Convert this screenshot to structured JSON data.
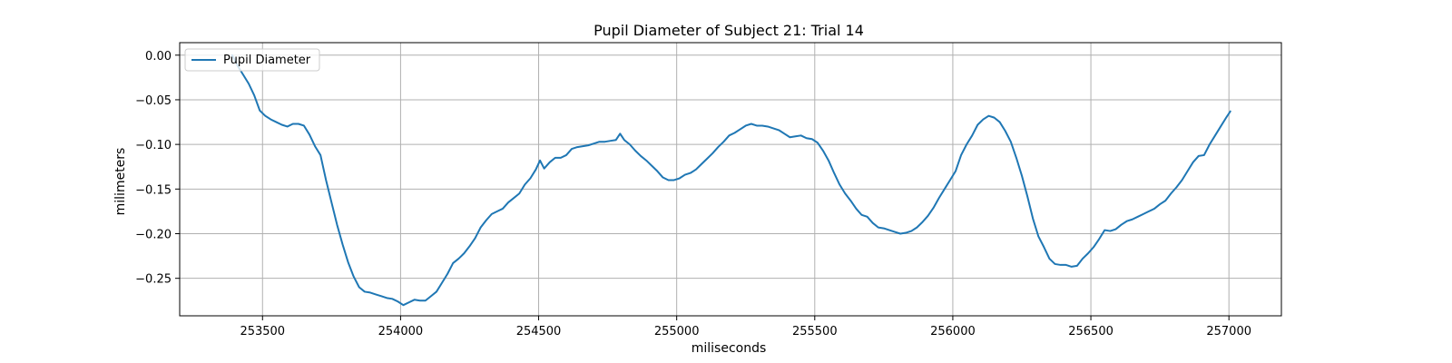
{
  "chart_data": {
    "type": "line",
    "title": "Pupil Diameter of Subject 21: Trial 14",
    "xlabel": "miliseconds",
    "ylabel": "milimeters",
    "xlim": [
      253200,
      257190
    ],
    "ylim": [
      -0.292,
      0.014
    ],
    "xticks": [
      253500,
      254000,
      254500,
      255000,
      255500,
      256000,
      256500,
      257000
    ],
    "yticks": [
      0.0,
      -0.05,
      -0.1,
      -0.15,
      -0.2,
      -0.25
    ],
    "xtick_labels": [
      "253500",
      "254000",
      "254500",
      "255000",
      "255500",
      "256000",
      "256500",
      "257000"
    ],
    "ytick_labels": [
      "0.00",
      "−0.05",
      "−0.10",
      "−0.15",
      "−0.20",
      "−0.25"
    ],
    "grid": true,
    "legend_position": "upper-left",
    "series": [
      {
        "name": "Pupil Diameter",
        "color": "#1f77b4",
        "points": [
          [
            253390,
            0.0
          ],
          [
            253410,
            -0.012
          ],
          [
            253430,
            -0.022
          ],
          [
            253450,
            -0.032
          ],
          [
            253470,
            -0.045
          ],
          [
            253490,
            -0.062
          ],
          [
            253510,
            -0.068
          ],
          [
            253530,
            -0.072
          ],
          [
            253550,
            -0.075
          ],
          [
            253570,
            -0.078
          ],
          [
            253590,
            -0.08
          ],
          [
            253610,
            -0.077
          ],
          [
            253630,
            -0.077
          ],
          [
            253650,
            -0.079
          ],
          [
            253670,
            -0.089
          ],
          [
            253690,
            -0.102
          ],
          [
            253710,
            -0.112
          ],
          [
            253730,
            -0.14
          ],
          [
            253750,
            -0.165
          ],
          [
            253770,
            -0.19
          ],
          [
            253790,
            -0.212
          ],
          [
            253810,
            -0.232
          ],
          [
            253830,
            -0.248
          ],
          [
            253850,
            -0.26
          ],
          [
            253870,
            -0.265
          ],
          [
            253890,
            -0.266
          ],
          [
            253910,
            -0.268
          ],
          [
            253930,
            -0.27
          ],
          [
            253950,
            -0.272
          ],
          [
            253970,
            -0.273
          ],
          [
            253990,
            -0.276
          ],
          [
            254010,
            -0.28
          ],
          [
            254030,
            -0.277
          ],
          [
            254050,
            -0.274
          ],
          [
            254070,
            -0.275
          ],
          [
            254090,
            -0.275
          ],
          [
            254110,
            -0.27
          ],
          [
            254130,
            -0.265
          ],
          [
            254150,
            -0.255
          ],
          [
            254170,
            -0.245
          ],
          [
            254190,
            -0.233
          ],
          [
            254210,
            -0.228
          ],
          [
            254230,
            -0.222
          ],
          [
            254250,
            -0.214
          ],
          [
            254270,
            -0.205
          ],
          [
            254290,
            -0.193
          ],
          [
            254310,
            -0.185
          ],
          [
            254330,
            -0.178
          ],
          [
            254350,
            -0.175
          ],
          [
            254370,
            -0.172
          ],
          [
            254390,
            -0.165
          ],
          [
            254410,
            -0.16
          ],
          [
            254430,
            -0.155
          ],
          [
            254450,
            -0.145
          ],
          [
            254470,
            -0.138
          ],
          [
            254490,
            -0.128
          ],
          [
            254505,
            -0.118
          ],
          [
            254520,
            -0.127
          ],
          [
            254540,
            -0.12
          ],
          [
            254560,
            -0.115
          ],
          [
            254580,
            -0.115
          ],
          [
            254600,
            -0.112
          ],
          [
            254620,
            -0.105
          ],
          [
            254640,
            -0.103
          ],
          [
            254660,
            -0.102
          ],
          [
            254680,
            -0.101
          ],
          [
            254700,
            -0.099
          ],
          [
            254720,
            -0.097
          ],
          [
            254740,
            -0.097
          ],
          [
            254760,
            -0.096
          ],
          [
            254780,
            -0.095
          ],
          [
            254795,
            -0.088
          ],
          [
            254810,
            -0.095
          ],
          [
            254830,
            -0.1
          ],
          [
            254850,
            -0.107
          ],
          [
            254870,
            -0.113
          ],
          [
            254890,
            -0.118
          ],
          [
            254910,
            -0.124
          ],
          [
            254930,
            -0.13
          ],
          [
            254950,
            -0.137
          ],
          [
            254970,
            -0.14
          ],
          [
            254990,
            -0.14
          ],
          [
            255010,
            -0.138
          ],
          [
            255030,
            -0.134
          ],
          [
            255050,
            -0.132
          ],
          [
            255070,
            -0.128
          ],
          [
            255090,
            -0.122
          ],
          [
            255110,
            -0.116
          ],
          [
            255130,
            -0.11
          ],
          [
            255150,
            -0.103
          ],
          [
            255170,
            -0.097
          ],
          [
            255190,
            -0.09
          ],
          [
            255210,
            -0.087
          ],
          [
            255230,
            -0.083
          ],
          [
            255250,
            -0.079
          ],
          [
            255270,
            -0.077
          ],
          [
            255290,
            -0.079
          ],
          [
            255310,
            -0.079
          ],
          [
            255330,
            -0.08
          ],
          [
            255350,
            -0.082
          ],
          [
            255370,
            -0.084
          ],
          [
            255390,
            -0.088
          ],
          [
            255410,
            -0.092
          ],
          [
            255430,
            -0.091
          ],
          [
            255450,
            -0.09
          ],
          [
            255470,
            -0.093
          ],
          [
            255490,
            -0.094
          ],
          [
            255510,
            -0.098
          ],
          [
            255530,
            -0.107
          ],
          [
            255550,
            -0.118
          ],
          [
            255570,
            -0.132
          ],
          [
            255590,
            -0.145
          ],
          [
            255610,
            -0.155
          ],
          [
            255630,
            -0.163
          ],
          [
            255650,
            -0.172
          ],
          [
            255670,
            -0.179
          ],
          [
            255690,
            -0.181
          ],
          [
            255710,
            -0.188
          ],
          [
            255730,
            -0.193
          ],
          [
            255750,
            -0.194
          ],
          [
            255770,
            -0.196
          ],
          [
            255790,
            -0.198
          ],
          [
            255810,
            -0.2
          ],
          [
            255830,
            -0.199
          ],
          [
            255850,
            -0.197
          ],
          [
            255870,
            -0.193
          ],
          [
            255890,
            -0.187
          ],
          [
            255910,
            -0.18
          ],
          [
            255930,
            -0.171
          ],
          [
            255950,
            -0.16
          ],
          [
            255970,
            -0.15
          ],
          [
            255990,
            -0.14
          ],
          [
            256010,
            -0.13
          ],
          [
            256030,
            -0.112
          ],
          [
            256050,
            -0.1
          ],
          [
            256070,
            -0.09
          ],
          [
            256090,
            -0.078
          ],
          [
            256110,
            -0.072
          ],
          [
            256130,
            -0.068
          ],
          [
            256150,
            -0.07
          ],
          [
            256170,
            -0.075
          ],
          [
            256190,
            -0.085
          ],
          [
            256210,
            -0.097
          ],
          [
            256230,
            -0.115
          ],
          [
            256250,
            -0.135
          ],
          [
            256270,
            -0.158
          ],
          [
            256290,
            -0.183
          ],
          [
            256310,
            -0.203
          ],
          [
            256330,
            -0.215
          ],
          [
            256350,
            -0.228
          ],
          [
            256370,
            -0.234
          ],
          [
            256390,
            -0.235
          ],
          [
            256410,
            -0.235
          ],
          [
            256430,
            -0.237
          ],
          [
            256450,
            -0.236
          ],
          [
            256470,
            -0.228
          ],
          [
            256490,
            -0.222
          ],
          [
            256510,
            -0.215
          ],
          [
            256530,
            -0.206
          ],
          [
            256550,
            -0.196
          ],
          [
            256570,
            -0.197
          ],
          [
            256590,
            -0.195
          ],
          [
            256610,
            -0.19
          ],
          [
            256630,
            -0.186
          ],
          [
            256650,
            -0.184
          ],
          [
            256670,
            -0.181
          ],
          [
            256690,
            -0.178
          ],
          [
            256710,
            -0.175
          ],
          [
            256730,
            -0.172
          ],
          [
            256750,
            -0.167
          ],
          [
            256770,
            -0.163
          ],
          [
            256790,
            -0.155
          ],
          [
            256810,
            -0.148
          ],
          [
            256830,
            -0.14
          ],
          [
            256850,
            -0.13
          ],
          [
            256870,
            -0.12
          ],
          [
            256890,
            -0.113
          ],
          [
            256910,
            -0.112
          ],
          [
            256930,
            -0.1
          ],
          [
            256950,
            -0.09
          ],
          [
            256970,
            -0.08
          ],
          [
            256990,
            -0.07
          ],
          [
            257005,
            -0.063
          ]
        ]
      }
    ]
  }
}
